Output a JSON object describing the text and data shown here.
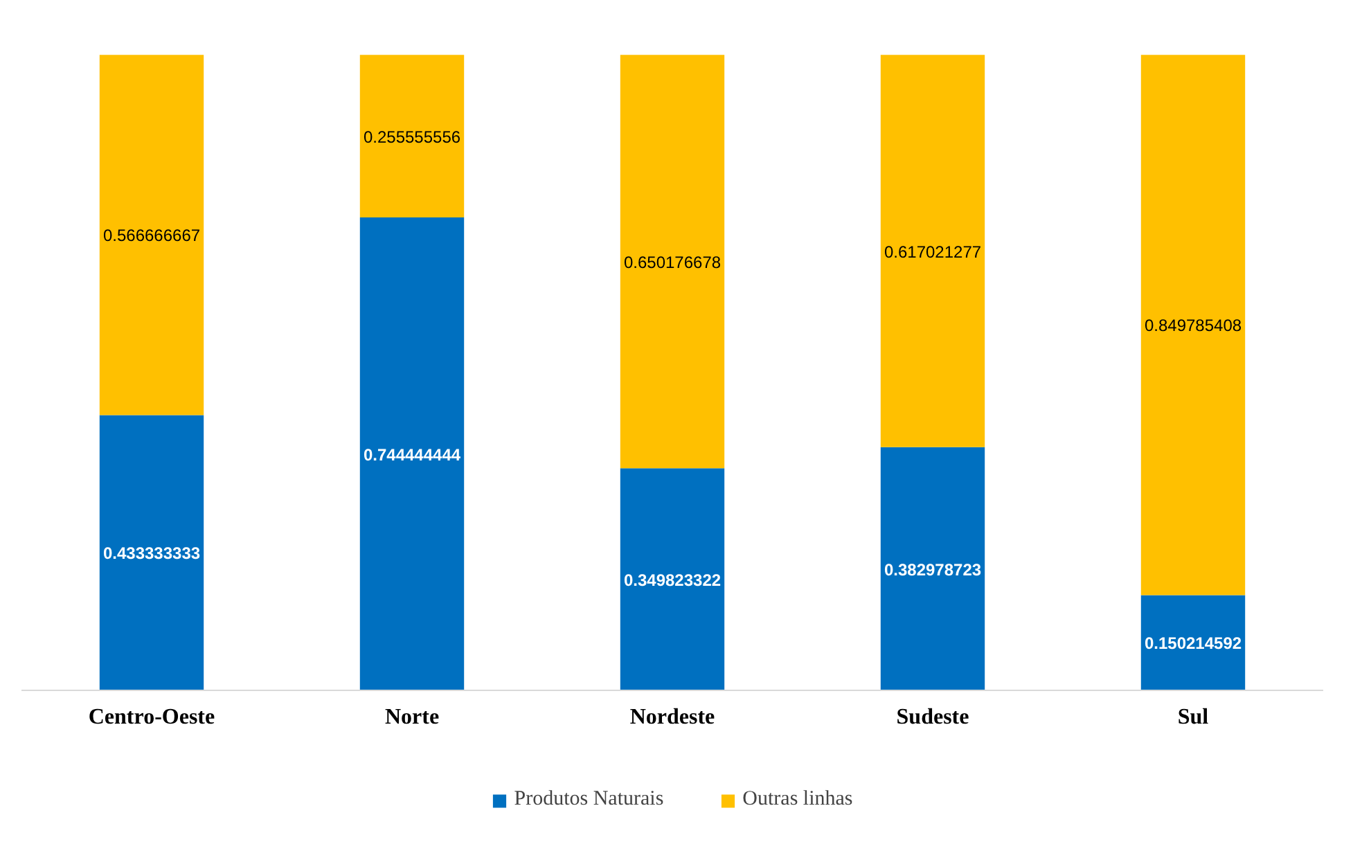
{
  "chart_data": {
    "type": "bar",
    "stacked": true,
    "categories": [
      "Centro-Oeste",
      "Norte",
      "Nordeste",
      "Sudeste",
      "Sul"
    ],
    "series": [
      {
        "name": "Produtos Naturais",
        "color": "#0070c0",
        "values": [
          0.433333333,
          0.744444444,
          0.349823322,
          0.382978723,
          0.150214592
        ]
      },
      {
        "name": "Outras linhas",
        "color": "#ffc000",
        "values": [
          0.566666667,
          0.255555556,
          0.650176678,
          0.617021277,
          0.849785408
        ]
      }
    ],
    "data_labels": true,
    "legend": "bottom",
    "grid": false
  }
}
